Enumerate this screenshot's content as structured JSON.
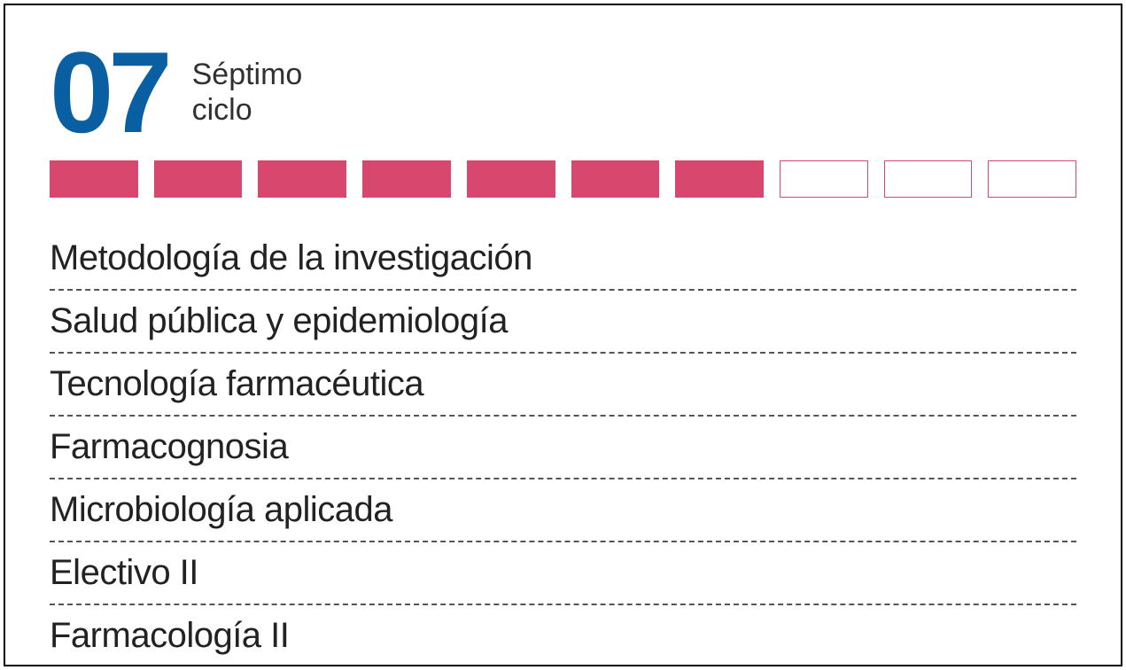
{
  "header": {
    "cycle_number": "07",
    "cycle_label_line1": "Séptimo",
    "cycle_label_line2": "ciclo",
    "number_color": "#0a5fa3",
    "number_fontsize": 130,
    "label_color": "#303030",
    "label_fontsize": 34
  },
  "progress": {
    "total_blocks": 10,
    "filled_blocks": 7,
    "filled_color": "#d8476e",
    "empty_border_color": "#d8476e",
    "block_height": 42,
    "block_gap": 18
  },
  "courses": {
    "items": [
      {
        "title": "Metodología de la investigación"
      },
      {
        "title": "Salud pública y epidemiología"
      },
      {
        "title": "Tecnología farmacéutica"
      },
      {
        "title": "Farmacognosia"
      },
      {
        "title": "Microbiología aplicada"
      },
      {
        "title": "Electivo II"
      },
      {
        "title": "Farmacología II"
      }
    ],
    "text_color": "#222222",
    "fontsize": 40,
    "divider_color": "#555555",
    "divider_style": "dashed"
  },
  "card": {
    "border_color": "#000000",
    "background_color": "#ffffff"
  }
}
